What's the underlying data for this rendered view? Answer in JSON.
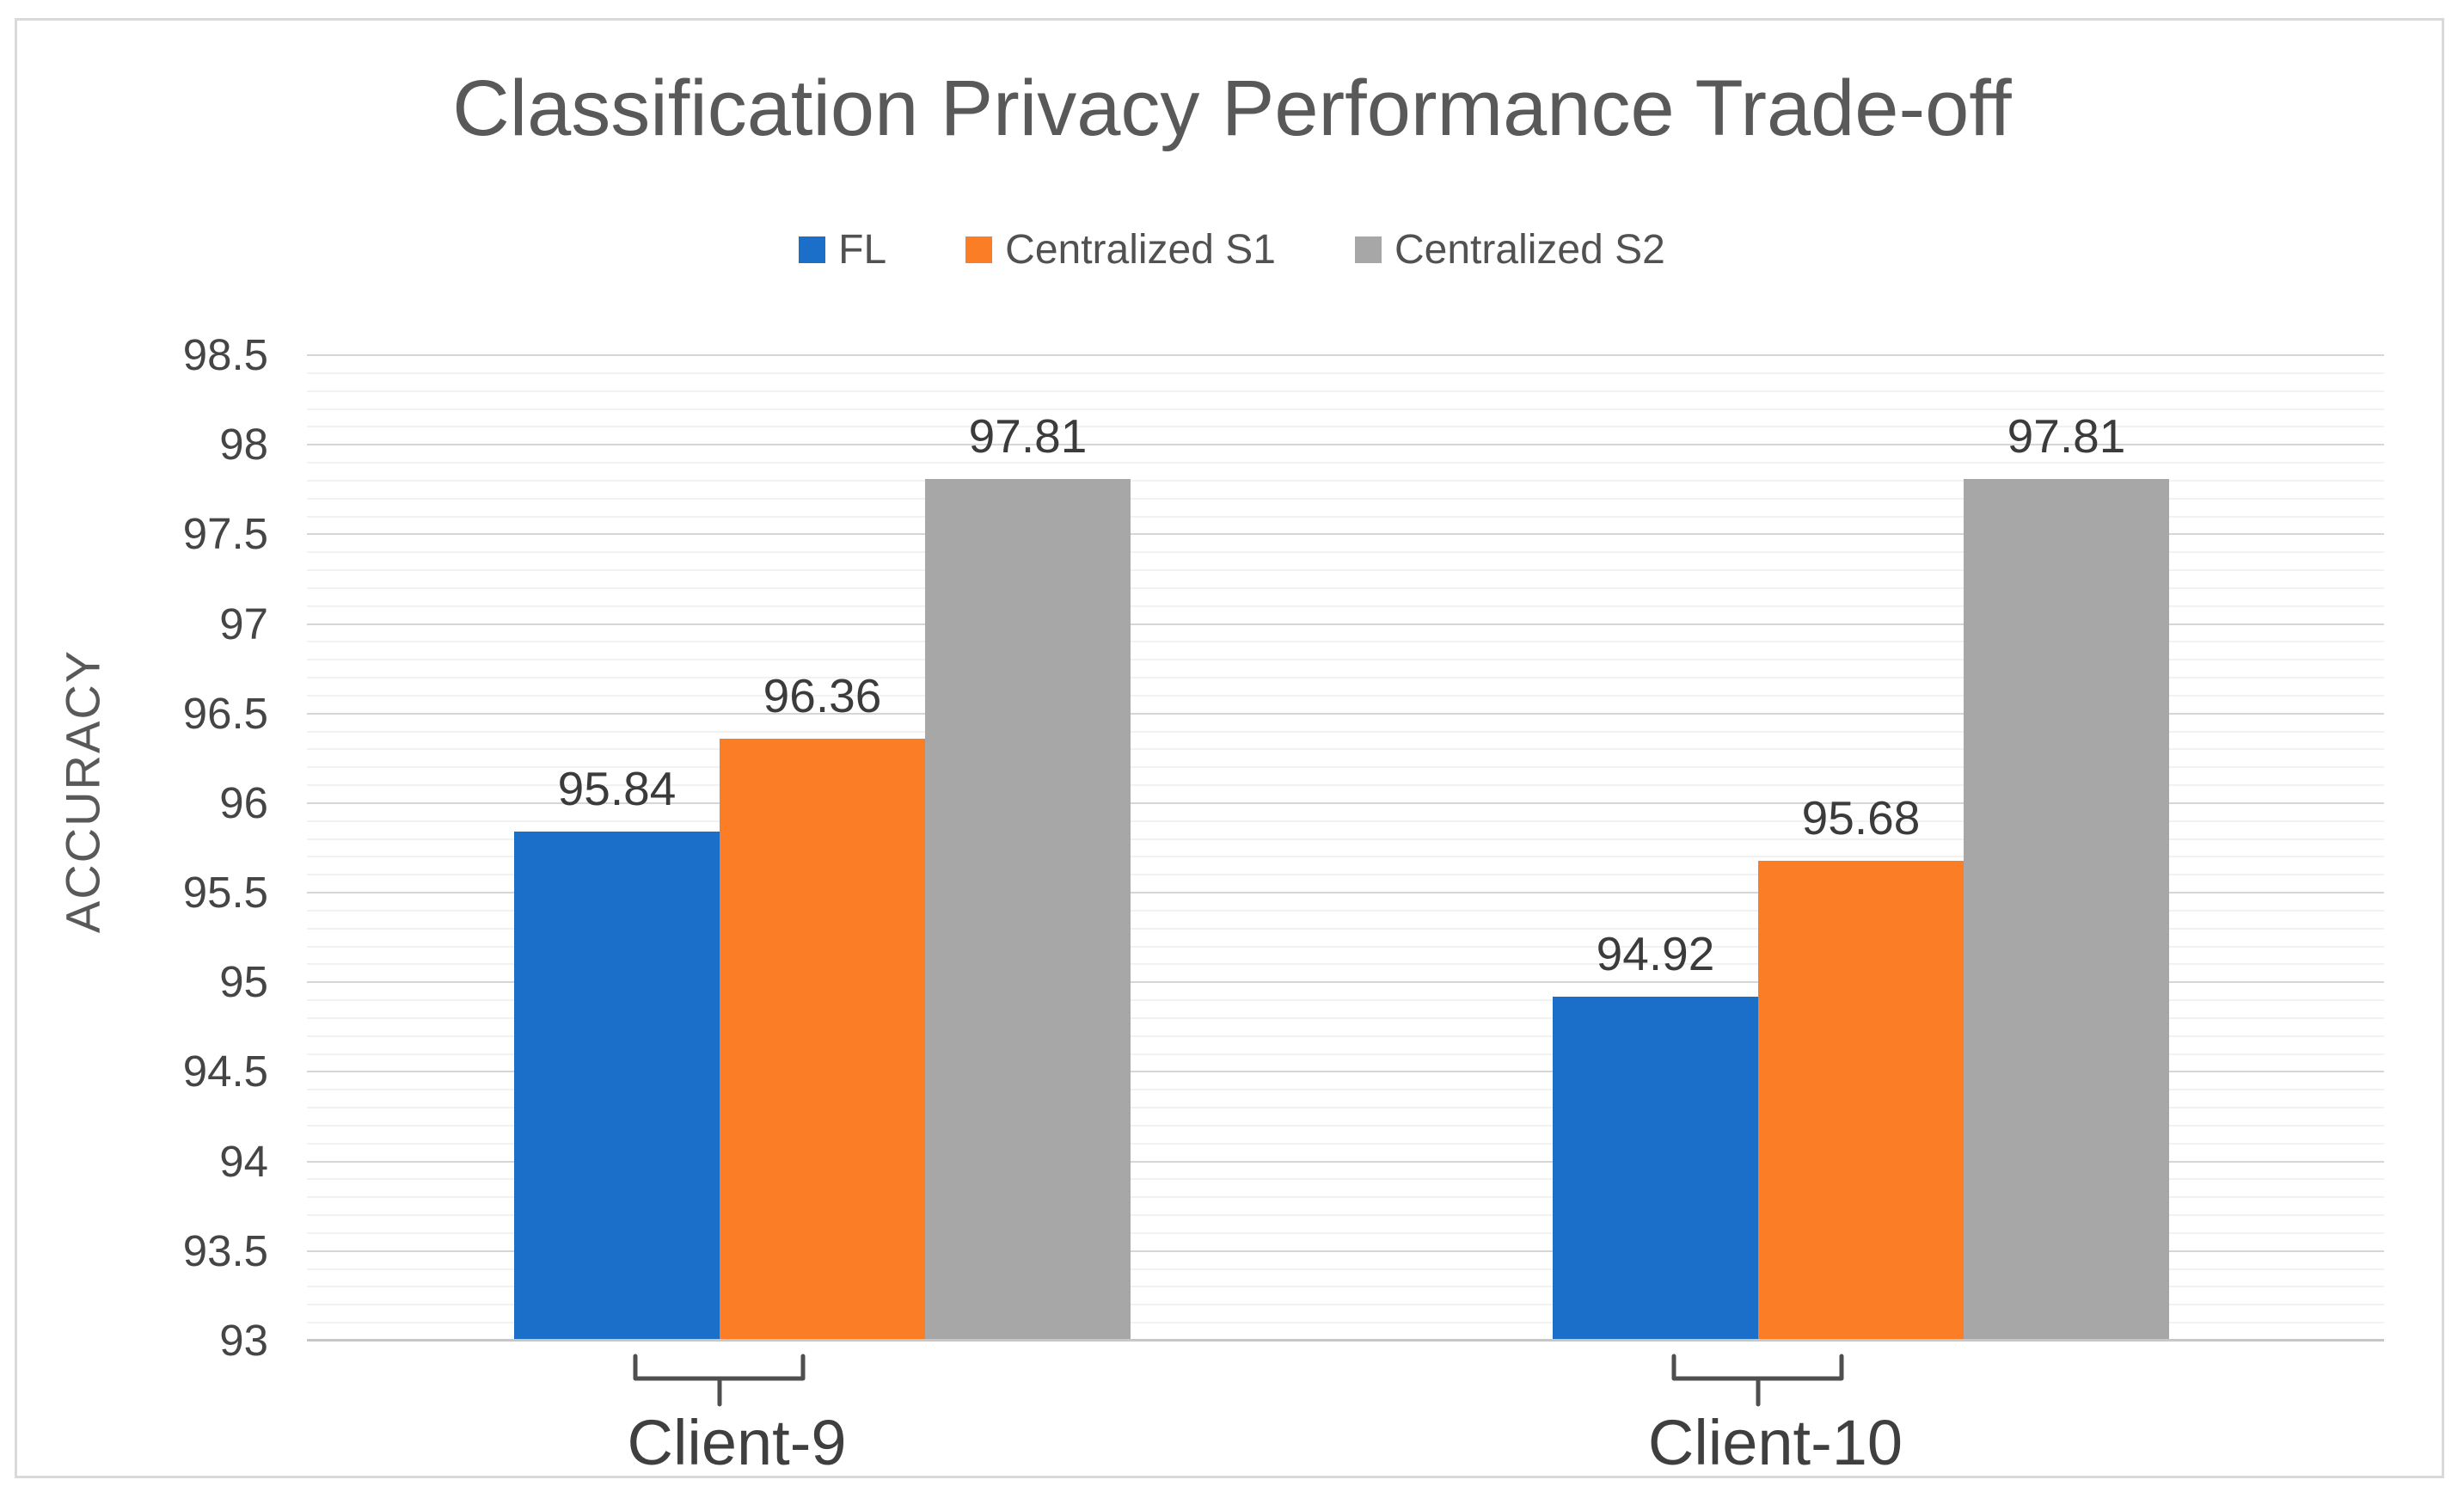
{
  "title": "Classification Privacy Performance Trade-off",
  "legend": {
    "items": [
      {
        "label": "FL"
      },
      {
        "label": "Centralized S1"
      },
      {
        "label": "Centralized S2"
      }
    ]
  },
  "chart_data": {
    "type": "bar",
    "title": "Classification Privacy Performance Trade-off",
    "categories": [
      "Client-9",
      "Client-10"
    ],
    "series": [
      {
        "name": "FL",
        "color": "#1c6fc8",
        "values": [
          95.84,
          94.92
        ]
      },
      {
        "name": "Centralized S1",
        "color": "#fb7d26",
        "values": [
          96.36,
          95.68
        ]
      },
      {
        "name": "Centralized S2",
        "color": "#a7a7a7",
        "values": [
          97.81,
          97.81
        ]
      }
    ],
    "xlabel": "",
    "ylabel": "ACCURACY",
    "ylim": [
      93,
      98.5
    ],
    "ytick_step": 0.5,
    "minor_gridline_step": 0.1,
    "yticks": [
      "98.5",
      "98",
      "97.5",
      "97",
      "96.5",
      "96",
      "95.5",
      "95",
      "94.5",
      "94",
      "93.5",
      "93"
    ],
    "value_label_decimals": 2,
    "grid": "horizontal major and minor gridlines",
    "legend_position": "top-center",
    "colors": {
      "gridline_major": "#d6d6d6",
      "gridline_minor": "#f2f2f2",
      "axis_line": "#c7c7c7",
      "brace": "#4f4f4f",
      "title_text": "#595959",
      "tick_text": "#454545",
      "value_label_text": "#3b3b3b",
      "category_text": "#3f3f3f",
      "frame_border": "#d9d9d9"
    }
  }
}
